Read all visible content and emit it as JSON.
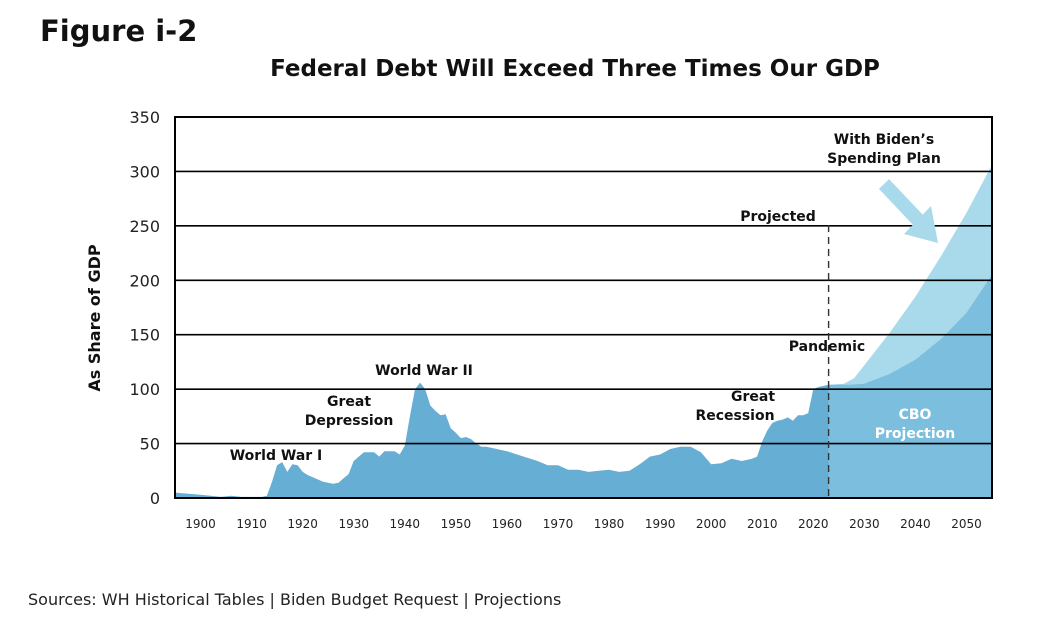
{
  "figure_label": "Figure i-2",
  "sources": "Sources: WH Historical Tables | Biden Budget Request | Projections",
  "colors": {
    "historical": "#66aed4",
    "cbo_projection": "#7cbedd",
    "biden_plan": "#a8daec",
    "arrow": "#a8daec",
    "gridline": "#000000"
  },
  "chart_data": {
    "type": "area",
    "title": "Federal Debt Will Exceed Three Times Our GDP",
    "xlabel": "",
    "ylabel": "As Share of GDP",
    "xlim": [
      1895,
      2055
    ],
    "ylim": [
      0,
      350
    ],
    "grid": true,
    "yticks": [
      0,
      50,
      100,
      150,
      200,
      250,
      300,
      350
    ],
    "xticks": [
      1900,
      1910,
      1920,
      1930,
      1940,
      1950,
      1960,
      1970,
      1980,
      1990,
      2000,
      2010,
      2020,
      2030,
      2040,
      2050
    ],
    "series": [
      {
        "x": [
          1895,
          1900,
          1902,
          1904,
          1906,
          1908,
          1910,
          1912,
          1913,
          1914,
          1915,
          1916,
          1917,
          1918,
          1919,
          1920,
          1921,
          1922,
          1923,
          1924,
          1925,
          1926,
          1927,
          1928,
          1929,
          1930,
          1931,
          1932,
          1933,
          1934,
          1935,
          1936,
          1937,
          1938,
          1939,
          1940,
          1941,
          1942,
          1943,
          1944,
          1945,
          1946,
          1947,
          1948,
          1949,
          1950,
          1951,
          1952,
          1953,
          1954,
          1955,
          1956,
          1957,
          1958,
          1960,
          1962,
          1964,
          1966,
          1968,
          1970,
          1972,
          1974,
          1976,
          1978,
          1980,
          1982,
          1984,
          1986,
          1988,
          1990,
          1992,
          1994,
          1996,
          1998,
          2000,
          2002,
          2004,
          2006,
          2008,
          2009,
          2010,
          2011,
          2012,
          2013,
          2014,
          2015,
          2016,
          2017,
          2018,
          2019,
          2020,
          2021,
          2022,
          2023
        ],
        "values": [
          5,
          3,
          2,
          1,
          2,
          1,
          1,
          1,
          2,
          15,
          30,
          33,
          24,
          31,
          30,
          24,
          21,
          19,
          17,
          15,
          14,
          13,
          14,
          18,
          22,
          34,
          38,
          42,
          42,
          42,
          38,
          43,
          43,
          43,
          40,
          48,
          75,
          100,
          106,
          100,
          85,
          80,
          76,
          77,
          64,
          60,
          55,
          56,
          54,
          50,
          47,
          47,
          46,
          45,
          43,
          40,
          37,
          34,
          30,
          30,
          26,
          26,
          24,
          25,
          26,
          24,
          25,
          31,
          38,
          40,
          45,
          47,
          47,
          42,
          31,
          32,
          36,
          34,
          36,
          38,
          52,
          62,
          69,
          71,
          72,
          74,
          71,
          76,
          76,
          78,
          100,
          102,
          103,
          104
        ]
      },
      {
        "x": [
          2023,
          2027,
          2030,
          2035,
          2040,
          2045,
          2050,
          2055
        ],
        "values": [
          104,
          104,
          105,
          114,
          127,
          146,
          170,
          205
        ]
      },
      {
        "x": [
          2023,
          2026,
          2028,
          2030,
          2035,
          2040,
          2045,
          2050,
          2055
        ],
        "values": [
          104,
          105,
          110,
          122,
          152,
          185,
          222,
          262,
          306
        ]
      }
    ],
    "annotations": {
      "wwi": "World War I",
      "great_depression_1": "Great",
      "great_depression_2": "Depression",
      "wwii": "World War II",
      "great_recession_1": "Great",
      "great_recession_2": "Recession",
      "pandemic": "Pandemic",
      "projected": "Projected",
      "cbo_1": "CBO",
      "cbo_2": "Projection",
      "biden_1": "With Biden’s",
      "biden_2": "Spending Plan"
    },
    "projection_start_year": 2023
  }
}
